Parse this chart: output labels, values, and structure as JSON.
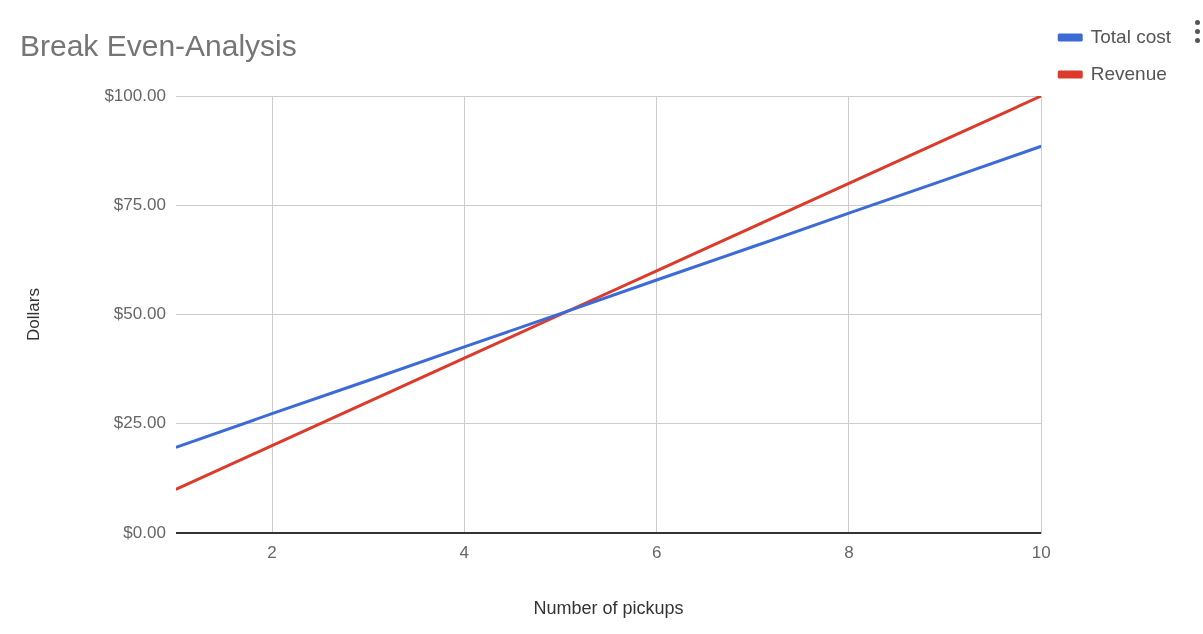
{
  "chart_data": {
    "type": "line",
    "title": "Break Even-Analysis",
    "xlabel": "Number of pickups",
    "ylabel": "Dollars",
    "x": [
      1,
      2,
      3,
      4,
      5,
      6,
      7,
      8,
      9,
      10
    ],
    "series": [
      {
        "name": "Total cost",
        "color": "#3c6ad6",
        "values": [
          19.6,
          27.3,
          34.9,
          42.6,
          50.2,
          57.9,
          65.5,
          73.2,
          80.8,
          88.5
        ]
      },
      {
        "name": "Revenue",
        "color": "#dc3b2c",
        "values": [
          10,
          20,
          30,
          40,
          50,
          60,
          70,
          80,
          90,
          100
        ]
      }
    ],
    "xlim": [
      1,
      10
    ],
    "xticks": [
      2,
      4,
      6,
      8,
      10
    ],
    "ylim": [
      0,
      100
    ],
    "yticks": [
      {
        "value": 0,
        "label": "$0.00"
      },
      {
        "value": 25,
        "label": "$25.00"
      },
      {
        "value": 50,
        "label": "$50.00"
      },
      {
        "value": 75,
        "label": "$75.00"
      },
      {
        "value": 100,
        "label": "$100.00"
      }
    ],
    "grid": true,
    "legend": "top right",
    "marker": "none",
    "line_style": "solid"
  }
}
